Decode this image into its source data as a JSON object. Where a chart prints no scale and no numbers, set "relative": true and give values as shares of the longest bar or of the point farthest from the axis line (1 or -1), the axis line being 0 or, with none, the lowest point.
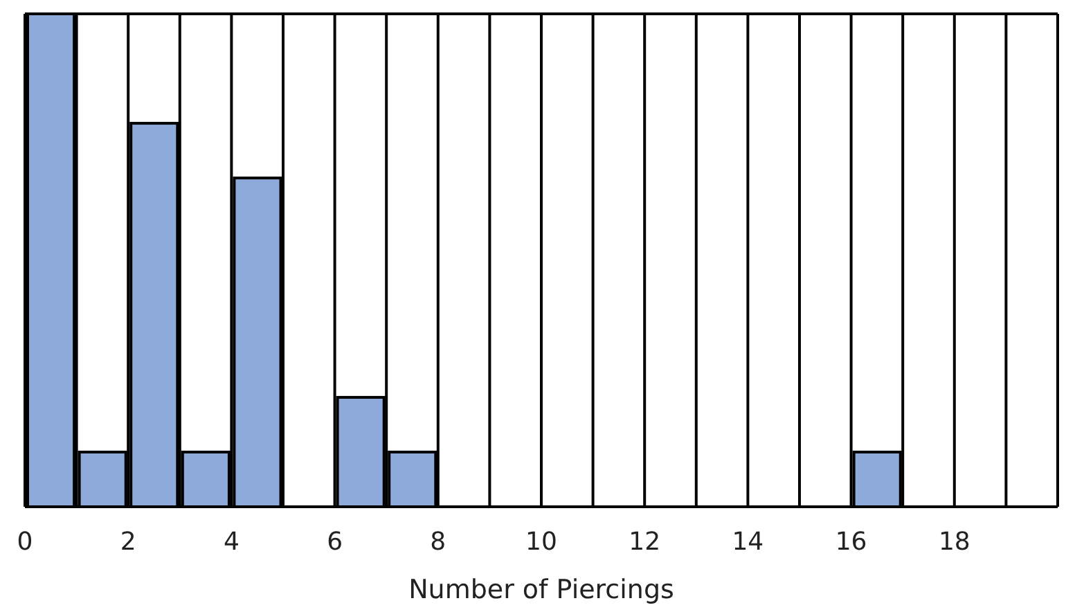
{
  "chart_data": {
    "type": "bar",
    "xlabel": "Number of Piercings",
    "x": [
      0.5,
      1.5,
      2.5,
      3.5,
      4.5,
      5.5,
      6.5,
      7.5,
      8.5,
      9.5,
      10.5,
      11.5,
      12.5,
      13.5,
      14.5,
      15.5,
      16.5,
      17.5,
      18.5,
      19.5
    ],
    "values": [
      1,
      0.111,
      0.778,
      0.111,
      0.667,
      0,
      0.222,
      0.111,
      0,
      0,
      0,
      0,
      0,
      0,
      0,
      0,
      0.111,
      0,
      0,
      0
    ],
    "relative": true,
    "color": "#8eaadb",
    "xlim": [
      0,
      20
    ],
    "xticks": [
      0,
      2,
      4,
      6,
      8,
      10,
      12,
      14,
      16,
      18
    ],
    "grid": true
  }
}
